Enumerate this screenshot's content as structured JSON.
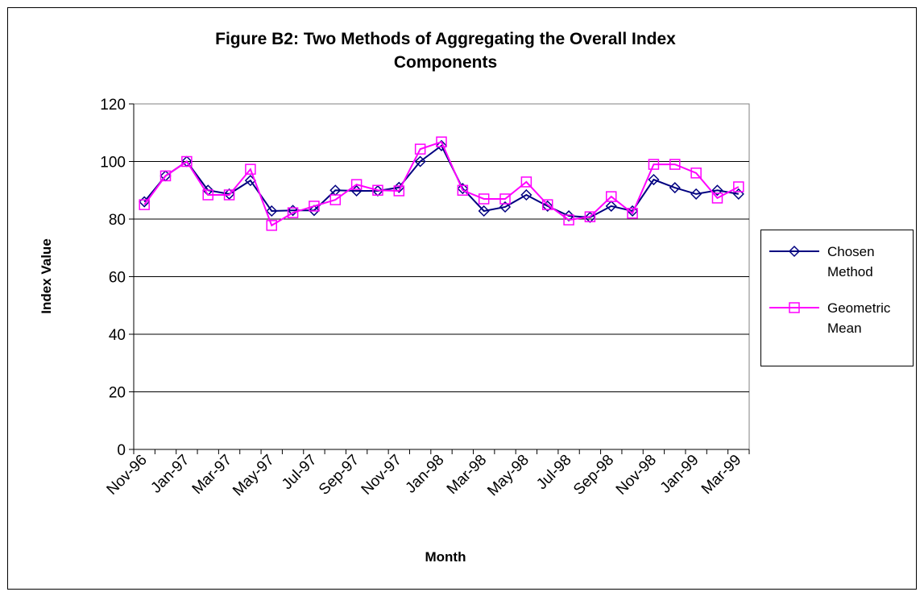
{
  "chart_data": {
    "type": "line",
    "title": "Figure B2: Two Methods of Aggregating the Overall Index Components",
    "x_label": "Month",
    "y_label": "Index Value",
    "categories": [
      "Nov-96",
      null,
      "Jan-97",
      null,
      "Mar-97",
      null,
      "May-97",
      null,
      "Jul-97",
      null,
      "Sep-97",
      null,
      "Nov-97",
      null,
      "Jan-98",
      null,
      "Mar-98",
      null,
      "May-98",
      null,
      "Jul-98",
      null,
      "Sep-98",
      null,
      "Nov-98",
      null,
      "Jan-99",
      null,
      "Mar-99"
    ],
    "series": [
      {
        "name": "Chosen Method",
        "color": "#000080",
        "marker": "diamond",
        "values": [
          86,
          95,
          100,
          90,
          88.7,
          93.4,
          82.8,
          83,
          83,
          90,
          89.8,
          89.8,
          91,
          100,
          105.5,
          90.6,
          82.8,
          84.2,
          88.4,
          84.5,
          81.1,
          80.6,
          84.5,
          82.8,
          93.7,
          90.9,
          88.7,
          90,
          88.7
        ]
      },
      {
        "name": "Geometric Mean",
        "color": "#ff00ff",
        "marker": "square",
        "values": [
          85,
          95,
          100,
          88.4,
          88.4,
          97.3,
          77.8,
          82.2,
          84.5,
          86.7,
          92,
          90,
          89.8,
          104.3,
          106.8,
          90,
          87,
          87,
          92.9,
          85,
          79.7,
          80.8,
          87.8,
          82,
          99,
          99,
          96,
          87.3,
          91.2
        ]
      }
    ],
    "ylim": [
      0,
      120
    ],
    "yticks": [
      0,
      20,
      40,
      60,
      80,
      100,
      120
    ],
    "grid": true,
    "legend": "right"
  }
}
